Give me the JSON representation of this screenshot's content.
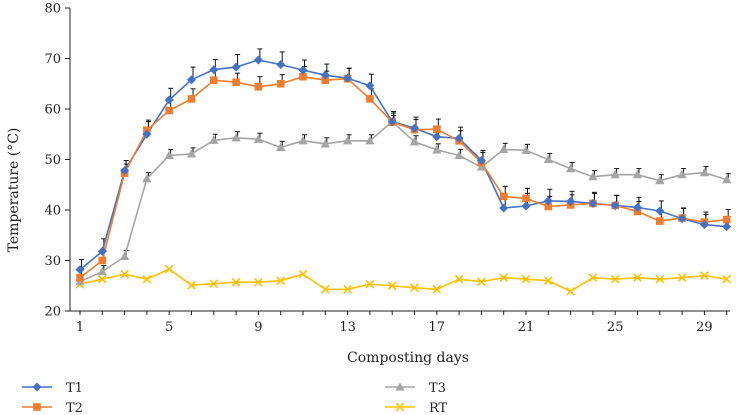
{
  "chart_data": {
    "type": "line",
    "title": "",
    "xlabel": "Composting days",
    "ylabel": "Temperature (°C)",
    "xlim": [
      1,
      30
    ],
    "ylim": [
      20,
      80
    ],
    "x_ticks": [
      1,
      5,
      9,
      13,
      17,
      21,
      25,
      29
    ],
    "y_ticks": [
      20,
      30,
      40,
      50,
      60,
      70,
      80
    ],
    "grid": false,
    "legend_position": "bottom",
    "x": [
      1,
      2,
      3,
      4,
      5,
      6,
      7,
      8,
      9,
      10,
      11,
      12,
      13,
      14,
      15,
      16,
      17,
      18,
      19,
      20,
      21,
      22,
      23,
      24,
      25,
      26,
      27,
      28,
      29,
      30
    ],
    "series": [
      {
        "name": "T1",
        "color": "#4472C4",
        "marker": "diamond",
        "values": [
          28.2,
          31.8,
          47.8,
          55.0,
          61.8,
          65.8,
          67.8,
          68.3,
          69.7,
          68.8,
          67.7,
          66.7,
          66.1,
          64.6,
          57.5,
          56.2,
          54.5,
          54.2,
          49.8,
          40.4,
          40.8,
          41.8,
          41.7,
          41.3,
          40.9,
          40.5,
          39.8,
          38.3,
          37.1,
          36.7
        ],
        "errors": [
          2.0,
          2.5,
          2.0,
          2.5,
          2.3,
          2.5,
          2.0,
          2.5,
          2.2,
          2.5,
          2.0,
          2.2,
          2.0,
          2.3,
          2.0,
          2.2,
          2.0,
          2.2,
          2.0,
          2.5,
          2.5,
          2.3,
          2.0,
          2.2,
          2.0,
          2.0,
          2.0,
          2.0,
          2.0,
          2.0
        ]
      },
      {
        "name": "T2",
        "color": "#ED7D31",
        "marker": "square",
        "values": [
          26.6,
          30.0,
          47.3,
          55.8,
          59.7,
          62.0,
          65.7,
          65.3,
          64.4,
          65.0,
          66.4,
          65.7,
          66.0,
          62.0,
          57.4,
          55.9,
          56.0,
          53.7,
          49.4,
          42.7,
          42.3,
          40.7,
          41.0,
          41.3,
          40.9,
          39.7,
          37.8,
          38.4,
          37.6,
          38.1
        ],
        "errors": [
          1.8,
          2.0,
          1.8,
          2.0,
          2.0,
          2.0,
          2.0,
          1.8,
          2.0,
          1.8,
          2.0,
          1.8,
          2.0,
          2.0,
          1.8,
          2.0,
          2.0,
          2.0,
          2.0,
          2.0,
          2.0,
          2.0,
          2.0,
          2.0,
          2.0,
          2.0,
          2.0,
          2.0,
          2.0,
          2.0
        ]
      },
      {
        "name": "T3",
        "color": "#A5A5A5",
        "marker": "triangle",
        "values": [
          25.8,
          27.8,
          30.8,
          46.2,
          50.8,
          51.1,
          53.8,
          54.3,
          54.0,
          52.4,
          53.7,
          53.1,
          53.7,
          53.7,
          57.5,
          53.5,
          51.9,
          50.8,
          48.5,
          52.0,
          51.8,
          50.0,
          48.2,
          46.6,
          47.0,
          47.0,
          45.8,
          47.0,
          47.4,
          46.0
        ],
        "errors": [
          1.2,
          1.2,
          1.2,
          1.2,
          1.2,
          1.2,
          1.2,
          1.2,
          1.2,
          1.2,
          1.2,
          1.2,
          1.2,
          1.2,
          1.2,
          1.2,
          1.2,
          1.2,
          1.2,
          1.2,
          1.2,
          1.2,
          1.2,
          1.2,
          1.2,
          1.2,
          1.2,
          1.2,
          1.2,
          1.2
        ]
      },
      {
        "name": "RT",
        "color": "#FFC000",
        "marker": "x",
        "values": [
          25.3,
          26.3,
          27.3,
          26.3,
          28.3,
          25.1,
          25.4,
          25.7,
          25.7,
          26.0,
          27.3,
          24.3,
          24.3,
          25.3,
          25.0,
          24.6,
          24.3,
          26.3,
          25.8,
          26.6,
          26.3,
          26.0,
          23.9,
          26.6,
          26.3,
          26.6,
          26.3,
          26.6,
          27.0,
          26.3
        ]
      }
    ]
  }
}
